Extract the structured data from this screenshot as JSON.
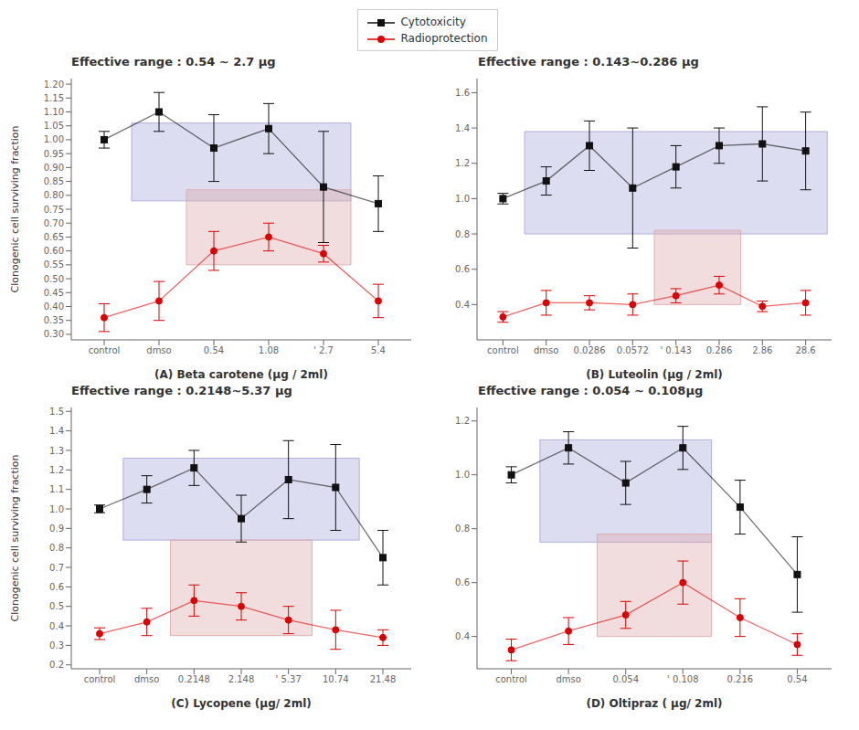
{
  "chart_data": [
    {
      "type": "line",
      "title": "Effective range : 0.54 ~ 2.7 μg",
      "x_label": "(A) Beta carotene (μg / 2ml)",
      "y_label": "Clonogenic cell surviving fraction",
      "categories": [
        "control",
        "dmso",
        "0.54",
        "1.08",
        "' 2.7",
        "5.4"
      ],
      "ylim": [
        0.28,
        1.22
      ],
      "yticks": [
        {
          "value": 0.3,
          "label": "0.30"
        },
        0.35,
        {
          "value": 0.4,
          "label": "0.40"
        },
        0.45,
        {
          "value": 0.5,
          "label": "0.50"
        },
        0.55,
        {
          "value": 0.6,
          "label": "0.60"
        },
        0.65,
        {
          "value": 0.7,
          "label": "0.70"
        },
        0.75,
        {
          "value": 0.8,
          "label": "0.80"
        },
        0.85,
        {
          "value": 0.9,
          "label": "0.90"
        },
        0.95,
        {
          "value": 1,
          "label": "1.00"
        },
        1.05,
        {
          "value": 1.1,
          "label": "1.10"
        },
        1.15,
        {
          "value": 1.2,
          "label": "1.20"
        }
      ],
      "series": [
        {
          "name": "Cytotoxicity",
          "color": "#111111",
          "marker": "square",
          "values": [
            1.0,
            1.1,
            0.97,
            1.04,
            0.83,
            0.77
          ],
          "errors": [
            0.03,
            0.07,
            0.12,
            0.09,
            0.2,
            0.1
          ]
        },
        {
          "name": "Radioprotection",
          "color": "#DD0000",
          "marker": "circle",
          "values": [
            0.36,
            0.42,
            0.6,
            0.65,
            0.59,
            0.42
          ],
          "errors": [
            0.05,
            0.07,
            0.07,
            0.05,
            0.03,
            0.06
          ]
        }
      ],
      "regions": [
        {
          "x": [
            0.5,
            4.5
          ],
          "y": [
            0.78,
            1.06
          ],
          "color": "#AAAADD"
        },
        {
          "x": [
            1.5,
            4.5
          ],
          "y": [
            0.55,
            0.82
          ],
          "color": "#DDAAAA"
        }
      ]
    },
    {
      "type": "line",
      "title": "Effective range : 0.143~0.286 μg",
      "x_label": "(B) Luteolin (μg / 2ml)",
      "categories": [
        "control",
        "dmso",
        "0.0286",
        "0.0572",
        "' 0.143",
        "0.286",
        "2.86",
        "28.6"
      ],
      "ylim": [
        0.2,
        1.68
      ],
      "yticks": [
        0.4,
        0.6,
        0.8,
        {
          "value": 1,
          "label": "1.0"
        },
        1.2,
        1.4,
        1.6
      ],
      "series": [
        {
          "name": "Cytotoxicity",
          "color": "#111111",
          "marker": "square",
          "values": [
            1.0,
            1.1,
            1.3,
            1.06,
            1.18,
            1.3,
            1.31,
            1.27
          ],
          "errors": [
            0.03,
            0.08,
            0.14,
            0.34,
            0.12,
            0.1,
            0.21,
            0.22
          ]
        },
        {
          "name": "Radioprotection",
          "color": "#DD0000",
          "marker": "circle",
          "values": [
            0.33,
            0.41,
            0.41,
            0.4,
            0.45,
            0.51,
            0.39,
            0.41
          ],
          "errors": [
            0.03,
            0.07,
            0.04,
            0.06,
            0.04,
            0.05,
            0.03,
            0.07
          ]
        }
      ],
      "regions": [
        {
          "x": [
            0.5,
            7.5
          ],
          "y": [
            0.8,
            1.38
          ],
          "color": "#AAAADD"
        },
        {
          "x": [
            3.5,
            5.5
          ],
          "y": [
            0.4,
            0.82
          ],
          "color": "#DDAAAA"
        }
      ]
    },
    {
      "type": "line",
      "title": "Effective range : 0.2148~5.37 μg",
      "x_label": "(C) Lycopene (μg/ 2ml)",
      "y_label": "Clonogenic cell surviving fraction",
      "categories": [
        "control",
        "dmso",
        "0.2148",
        "2.148",
        "' 5.37",
        "10.74",
        "21.48"
      ],
      "ylim": [
        0.18,
        1.52
      ],
      "yticks": [
        0.2,
        0.3,
        0.4,
        0.5,
        0.6,
        0.7,
        0.8,
        0.9,
        {
          "value": 1,
          "label": "1.0"
        },
        1.1,
        1.2,
        1.3,
        1.4,
        1.5
      ],
      "series": [
        {
          "name": "Cytotoxicity",
          "color": "#111111",
          "marker": "square",
          "values": [
            1.0,
            1.1,
            1.21,
            0.95,
            1.15,
            1.11,
            0.75
          ],
          "errors": [
            0.02,
            0.07,
            0.09,
            0.12,
            0.2,
            0.22,
            0.14
          ]
        },
        {
          "name": "Radioprotection",
          "color": "#DD0000",
          "marker": "circle",
          "values": [
            0.36,
            0.42,
            0.53,
            0.5,
            0.43,
            0.38,
            0.34
          ],
          "errors": [
            0.03,
            0.07,
            0.08,
            0.07,
            0.07,
            0.1,
            0.04
          ]
        }
      ],
      "regions": [
        {
          "x": [
            0.5,
            5.5
          ],
          "y": [
            0.84,
            1.26
          ],
          "color": "#AAAADD"
        },
        {
          "x": [
            1.5,
            4.5
          ],
          "y": [
            0.35,
            0.84
          ],
          "color": "#DDAAAA"
        }
      ]
    },
    {
      "type": "line",
      "title": "Effective range : 0.054 ~ 0.108μg",
      "x_label": "(D) Oltipraz ( μg/ 2ml)",
      "categories": [
        "control",
        "dmso",
        "0.054",
        "' 0.108",
        "0.216",
        "0.54"
      ],
      "ylim": [
        0.28,
        1.25
      ],
      "yticks": [
        0.4,
        0.6,
        0.8,
        {
          "value": 1,
          "label": "1.0"
        },
        1.2
      ],
      "series": [
        {
          "name": "Cytotoxicity",
          "color": "#111111",
          "marker": "square",
          "values": [
            1.0,
            1.1,
            0.97,
            1.1,
            0.88,
            0.63
          ],
          "errors": [
            0.03,
            0.06,
            0.08,
            0.08,
            0.1,
            0.14
          ]
        },
        {
          "name": "Radioprotection",
          "color": "#DD0000",
          "marker": "circle",
          "values": [
            0.35,
            0.42,
            0.48,
            0.6,
            0.47,
            0.37
          ],
          "errors": [
            0.04,
            0.05,
            0.05,
            0.08,
            0.07,
            0.04
          ]
        }
      ],
      "regions": [
        {
          "x": [
            0.5,
            3.5
          ],
          "y": [
            0.75,
            1.13
          ],
          "color": "#AAAADD"
        },
        {
          "x": [
            1.5,
            3.5
          ],
          "y": [
            0.4,
            0.78
          ],
          "color": "#DDAAAA"
        }
      ]
    }
  ]
}
